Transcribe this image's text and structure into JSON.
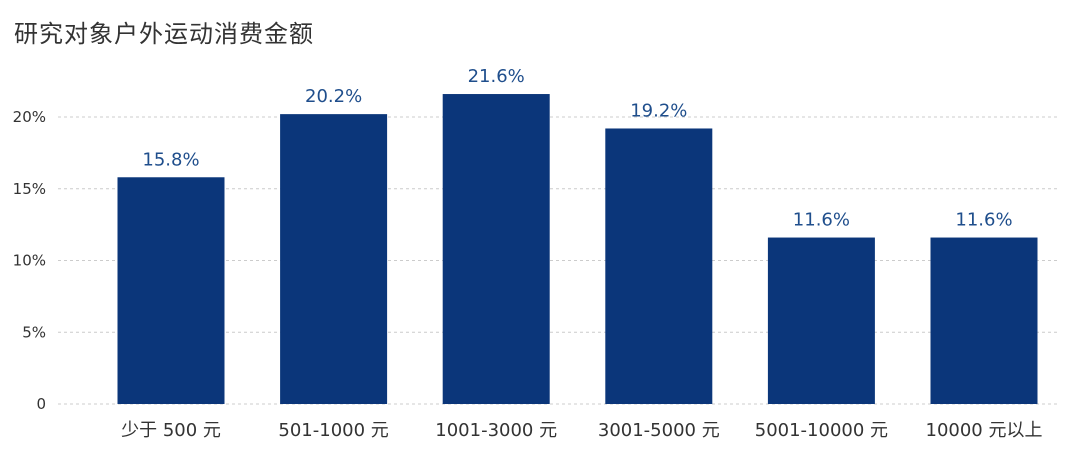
{
  "chart_data": {
    "type": "bar",
    "title": "研究对象户外运动消费金额",
    "categories": [
      "少于 500 元",
      "501-1000 元",
      "1001-3000 元",
      "3001-5000 元",
      "5001-10000 元",
      "10000 元以上"
    ],
    "values": [
      15.8,
      20.2,
      21.6,
      19.2,
      11.6,
      11.6
    ],
    "data_labels": [
      "15.8%",
      "20.2%",
      "21.6%",
      "19.2%",
      "11.6%",
      "11.6%"
    ],
    "yticks": [
      0,
      5,
      10,
      15,
      20
    ],
    "ytick_labels": [
      "0",
      "5%",
      "10%",
      "15%",
      "20%"
    ],
    "ylim": [
      0,
      20
    ],
    "xlabel": "",
    "ylabel": "",
    "grid": true,
    "legend": "none",
    "colors": {
      "bar": "#0b367a",
      "label": "#1f4e8c",
      "grid": "#cccccc",
      "text": "#333333"
    }
  }
}
